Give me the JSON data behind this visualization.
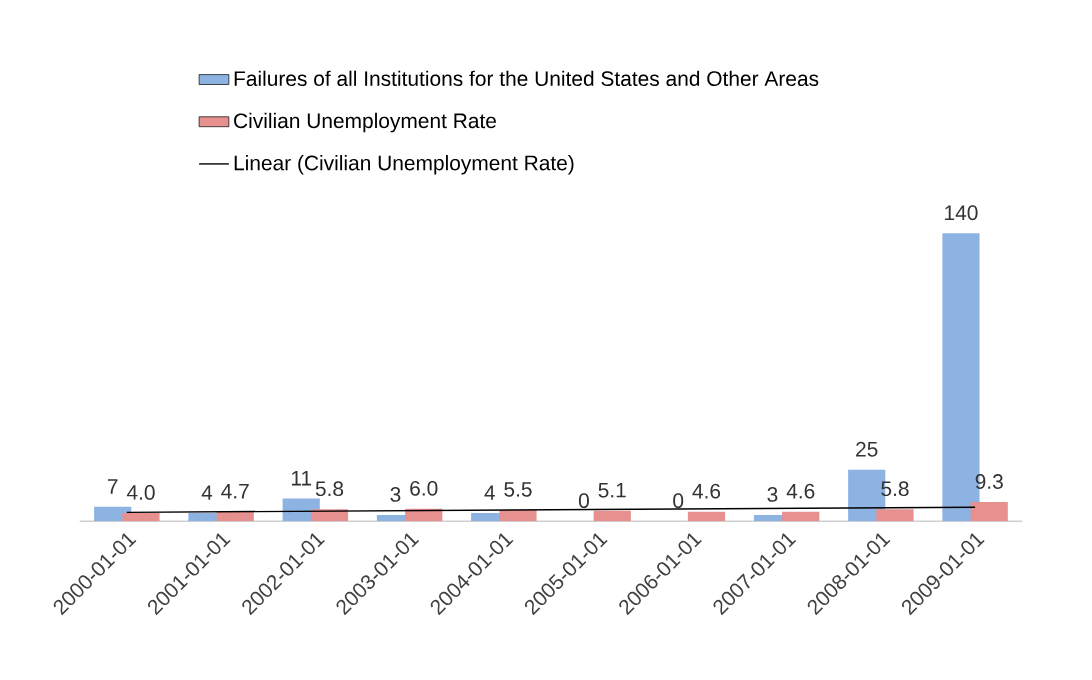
{
  "chart_data": {
    "type": "bar",
    "categories": [
      "2000-01-01",
      "2001-01-01",
      "2002-01-01",
      "2003-01-01",
      "2004-01-01",
      "2005-01-01",
      "2006-01-01",
      "2007-01-01",
      "2008-01-01",
      "2009-01-01"
    ],
    "series": [
      {
        "name": "Failures of all Institutions for the United States and Other Areas",
        "color": "#8db3e2",
        "values": [
          7,
          4,
          11,
          3,
          4,
          0,
          0,
          3,
          25,
          140
        ],
        "value_labels": [
          "7",
          "4",
          "11",
          "3",
          "4",
          "0",
          "0",
          "3",
          "25",
          "140"
        ]
      },
      {
        "name": "Civilian Unemployment Rate",
        "color": "#e6908f",
        "values": [
          4.0,
          4.7,
          5.8,
          6.0,
          5.5,
          5.1,
          4.6,
          4.6,
          5.8,
          9.3
        ],
        "value_labels": [
          "4.0",
          "4.7",
          "5.8",
          "6.0",
          "5.5",
          "5.1",
          "4.6",
          "4.6",
          "5.8",
          "9.3"
        ]
      },
      {
        "name": "Linear (Civilian Unemployment Rate)",
        "type": "line",
        "color": "#000000",
        "values": [
          4.3,
          null,
          null,
          null,
          null,
          null,
          null,
          null,
          null,
          6.8
        ]
      }
    ],
    "legend": "top",
    "grid": false,
    "marker": "none",
    "line_style": "solid"
  }
}
